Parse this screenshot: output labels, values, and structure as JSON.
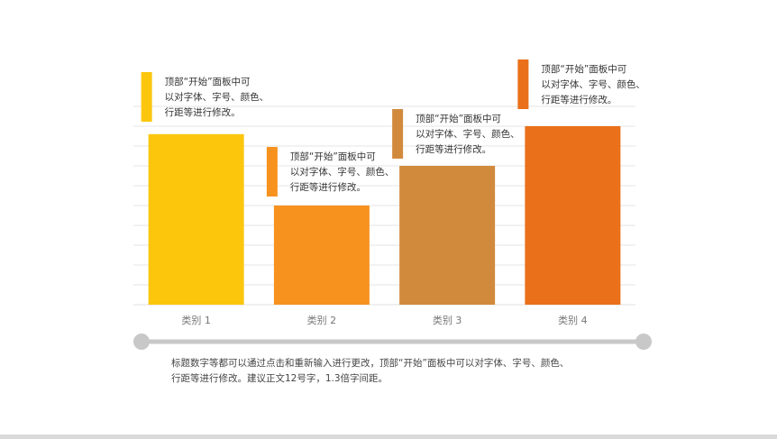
{
  "chart_data": {
    "type": "bar",
    "categories": [
      "类别 1",
      "类别 2",
      "类别 3",
      "类别 4"
    ],
    "values": [
      8.6,
      5.0,
      7.0,
      9.0
    ],
    "ylim": [
      0,
      10
    ],
    "grid": true,
    "bar_colors": [
      "#fcc60d",
      "#f7921f",
      "#d18a3c",
      "#ea7019"
    ],
    "callouts": [
      {
        "lines": [
          "顶部“开始”面板中可",
          "以对字体、字号、颜色、",
          "行距等进行修改。"
        ]
      },
      {
        "lines": [
          "顶部“开始”面板中可",
          "以对字体、字号、颜色、",
          "行距等进行修改。"
        ]
      },
      {
        "lines": [
          "顶部“开始”面板中可",
          "以对字体、字号、颜色、",
          "行距等进行修改。"
        ]
      },
      {
        "lines": [
          "顶部“开始”面板中可",
          "以对字体、字号、颜色、",
          "行距等进行修改。"
        ]
      }
    ]
  },
  "description": {
    "line1": "标题数字等都可以通过点击和重新输入进行更改，顶部“开始”面板中可以对字体、字号、颜色、",
    "line2": "行距等进行修改。建议正文12号字，1.3倍字间距。"
  },
  "colors": {
    "slider_track": "#c8c8c8",
    "grid": "#e6e6e6",
    "tick_label": "#777777"
  }
}
